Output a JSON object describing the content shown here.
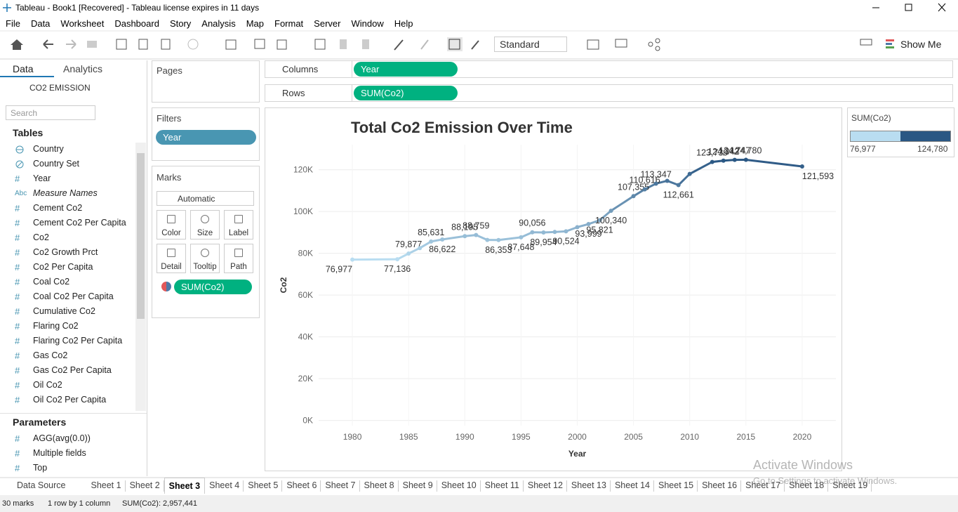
{
  "window_title": "Tableau - Book1 [Recovered] - Tableau license expires in 11 days",
  "menu": [
    "File",
    "Data",
    "Worksheet",
    "Dashboard",
    "Story",
    "Analysis",
    "Map",
    "Format",
    "Server",
    "Window",
    "Help"
  ],
  "toolbar": {
    "fit": "Standard",
    "show_me": "Show Me"
  },
  "data_pane": {
    "tabs": [
      "Data",
      "Analytics"
    ],
    "datasource": "CO2 EMISSION",
    "search_placeholder": "Search",
    "tables_heading": "Tables",
    "fields": [
      {
        "name": "Country",
        "kind": "geo"
      },
      {
        "name": "Country Set",
        "kind": "set"
      },
      {
        "name": "Year",
        "icon": "#"
      },
      {
        "name": "Measure Names",
        "icon": "Abc",
        "italic": true
      },
      {
        "name": "Cement Co2",
        "icon": "#"
      },
      {
        "name": "Cement Co2 Per Capita",
        "icon": "#"
      },
      {
        "name": "Co2",
        "icon": "#"
      },
      {
        "name": "Co2 Growth Prct",
        "icon": "#"
      },
      {
        "name": "Co2 Per Capita",
        "icon": "#"
      },
      {
        "name": "Coal Co2",
        "icon": "#"
      },
      {
        "name": "Coal Co2 Per Capita",
        "icon": "#"
      },
      {
        "name": "Cumulative Co2",
        "icon": "#"
      },
      {
        "name": "Flaring Co2",
        "icon": "#"
      },
      {
        "name": "Flaring Co2 Per Capita",
        "icon": "#"
      },
      {
        "name": "Gas Co2",
        "icon": "#"
      },
      {
        "name": "Gas Co2 Per Capita",
        "icon": "#"
      },
      {
        "name": "Oil Co2",
        "icon": "#"
      },
      {
        "name": "Oil Co2 Per Capita",
        "icon": "#"
      }
    ],
    "parameters_heading": "Parameters",
    "parameters": [
      {
        "name": "AGG(avg(0.0))",
        "icon": "#"
      },
      {
        "name": "Multiple fields",
        "icon": "#"
      },
      {
        "name": "Top",
        "icon": "#"
      }
    ]
  },
  "cards": {
    "pages": "Pages",
    "filters": "Filters",
    "filter_pills": [
      "Year"
    ],
    "marks": "Marks",
    "mark_type": "Automatic",
    "mark_buttons": [
      "Color",
      "Size",
      "Label",
      "Detail",
      "Tooltip",
      "Path"
    ],
    "mark_pill": "SUM(Co2)"
  },
  "shelves": {
    "columns_label": "Columns",
    "columns_pill": "Year",
    "rows_label": "Rows",
    "rows_pill": "SUM(Co2)"
  },
  "chart_data": {
    "type": "line",
    "title": "Total Co2 Emission Over Time",
    "x_label": "Year",
    "y_label": "Co2",
    "x": [
      1980,
      1984,
      1985,
      1986,
      1987,
      1988,
      1990,
      1991,
      1992,
      1993,
      1995,
      1996,
      1997,
      1998,
      1999,
      2000,
      2001,
      2002,
      2003,
      2005,
      2006,
      2007,
      2008,
      2009,
      2010,
      2012,
      2013,
      2014,
      2015,
      2020
    ],
    "values": [
      76977,
      77136,
      79877,
      82500,
      85631,
      86622,
      88195,
      88759,
      86400,
      86353,
      87648,
      90056,
      89954,
      90200,
      90524,
      92500,
      93999,
      95821,
      100340,
      107355,
      110616,
      113347,
      114700,
      112661,
      118000,
      123739,
      124342,
      124747,
      124780,
      121593
    ],
    "value_labels": [
      "76,977",
      "77,136",
      "79,877",
      null,
      "85,631",
      "86,622",
      "88,195",
      "88,759",
      null,
      "86,353",
      "87,648",
      "90,056",
      "89,954",
      null,
      "90,524",
      null,
      "93,999",
      "95,821",
      "100,340",
      "107,355",
      "110,616",
      "113,347",
      null,
      "112,661",
      null,
      "123,739",
      "124,342",
      "124,747",
      "124,780",
      "121,593"
    ],
    "color_range": [
      "#b9ddf1",
      "#2a5783"
    ],
    "xlim": [
      1977,
      2023
    ],
    "xticks": [
      1980,
      1985,
      1990,
      1995,
      2000,
      2005,
      2010,
      2015,
      2020
    ],
    "ylim": [
      -2500,
      132000
    ],
    "yticks": [
      {
        "value": 0,
        "label": "0K"
      },
      {
        "value": 20000,
        "label": "20K"
      },
      {
        "value": 40000,
        "label": "40K"
      },
      {
        "value": 60000,
        "label": "60K"
      },
      {
        "value": 80000,
        "label": "80K"
      },
      {
        "value": 100000,
        "label": "100K"
      },
      {
        "value": 120000,
        "label": "120K"
      }
    ],
    "grid": true
  },
  "legend": {
    "title": "SUM(Co2)"
  },
  "sheet_tabs": [
    "Data Source",
    "Sheet 1",
    "Sheet 2",
    "Sheet 3",
    "Sheet 4",
    "Sheet 5",
    "Sheet 6",
    "Sheet 7",
    "Sheet 8",
    "Sheet 9",
    "Sheet 10",
    "Sheet 11",
    "Sheet 12",
    "Sheet 13",
    "Sheet 14",
    "Sheet 15",
    "Sheet 16",
    "Sheet 17",
    "Sheet 18",
    "Sheet 19"
  ],
  "active_sheet": 3,
  "status": [
    "30 marks",
    "1 row by 1 column",
    "SUM(Co2): 2,957,441"
  ],
  "watermark": [
    "Activate Windows",
    "Go to Settings to activate Windows."
  ]
}
